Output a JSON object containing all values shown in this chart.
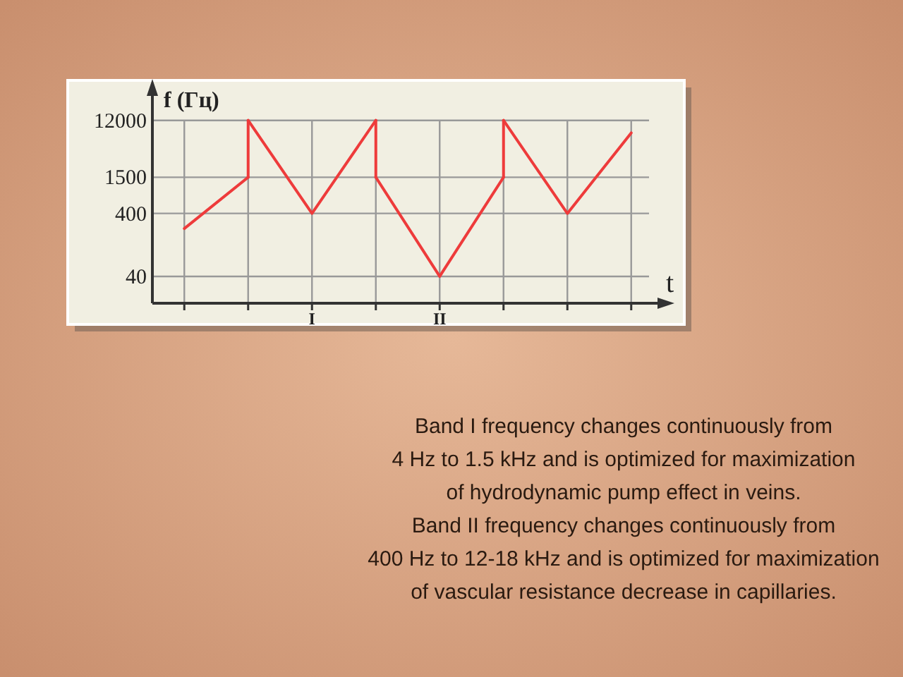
{
  "chart_data": {
    "type": "line",
    "ylabel": "f (Гц)",
    "xlabel": "t",
    "categories": [
      null,
      null,
      "I",
      null,
      "II",
      null,
      null,
      null
    ],
    "ylim": [
      15,
      40000
    ],
    "yticks": [
      40,
      400,
      1500,
      12000
    ],
    "log": "y",
    "grid": true,
    "marker": "none",
    "line_style": "solid",
    "series": [
      {
        "color": "#ee3b3b",
        "values": [
          230,
          1500,
          null,
          null,
          null,
          null,
          null,
          null
        ]
      },
      {
        "color": "#ee3b3b",
        "values": [
          null,
          12000,
          400,
          12000,
          null,
          null,
          null,
          null
        ]
      },
      {
        "color": "#ee3b3b",
        "values": [
          null,
          null,
          null,
          1500,
          40,
          1500,
          null,
          null
        ]
      },
      {
        "color": "#ee3b3b",
        "values": [
          null,
          null,
          null,
          null,
          null,
          12000,
          400,
          7600
        ]
      }
    ],
    "annotations": [
      "Band I frequency changes continuously from\n4 Hz to 1.5 kHz and is optimized for maximization\nof hydrodynamic pump effect in veins.",
      "Band II frequency changes continuously from\n400 Hz to 12-18 kHz and is optimized for maximization\nof vascular resistance decrease in capillaries."
    ]
  }
}
